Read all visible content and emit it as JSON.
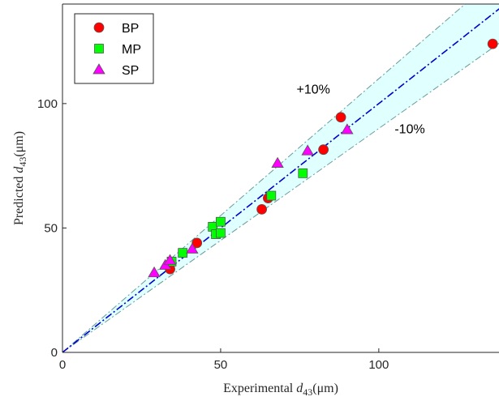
{
  "chart_data": {
    "type": "scatter",
    "title": "",
    "xlabel": {
      "prefix": "Experimental ",
      "var": "d",
      "sub": "43",
      "unit": "(μm)"
    },
    "ylabel": {
      "prefix": "Predicted ",
      "var": "d",
      "sub": "43",
      "unit": "(μm)"
    },
    "xlim": [
      0,
      138
    ],
    "ylim": [
      0,
      140
    ],
    "x_ticks": [
      0,
      50,
      100
    ],
    "y_ticks": [
      0,
      50,
      100
    ],
    "grid": false,
    "legend_position": "top-left",
    "reference_line": {
      "slope": 1,
      "color": "#0000cc"
    },
    "band": {
      "upper_slope": 1.1,
      "lower_slope": 0.9,
      "fill": "#e0ffff",
      "edge_color": "#6a9a9a"
    },
    "annotations": [
      {
        "text": "+10%",
        "x": 74,
        "y": 104
      },
      {
        "text": "-10%",
        "x": 105,
        "y": 88
      }
    ],
    "series": [
      {
        "name": "BP",
        "marker": "circle",
        "color": "#ff0000",
        "points": [
          [
            34,
            33.5
          ],
          [
            42.5,
            44
          ],
          [
            63,
            57.5
          ],
          [
            65,
            62
          ],
          [
            82.5,
            81.5
          ],
          [
            88,
            94.5
          ],
          [
            136,
            124
          ]
        ]
      },
      {
        "name": "MP",
        "marker": "square",
        "color": "#00ff00",
        "points": [
          [
            34.5,
            36.5
          ],
          [
            38,
            40
          ],
          [
            47.5,
            50.5
          ],
          [
            48.5,
            47.5
          ],
          [
            50,
            48
          ],
          [
            50,
            52.5
          ],
          [
            66,
            63
          ],
          [
            76,
            72
          ]
        ]
      },
      {
        "name": "SP",
        "marker": "triangle",
        "color": "#ff00ff",
        "points": [
          [
            29,
            32
          ],
          [
            32.5,
            35
          ],
          [
            34,
            37
          ],
          [
            41,
            41.5
          ],
          [
            68,
            76
          ],
          [
            77.5,
            81
          ],
          [
            90,
            89.5
          ]
        ]
      }
    ]
  }
}
